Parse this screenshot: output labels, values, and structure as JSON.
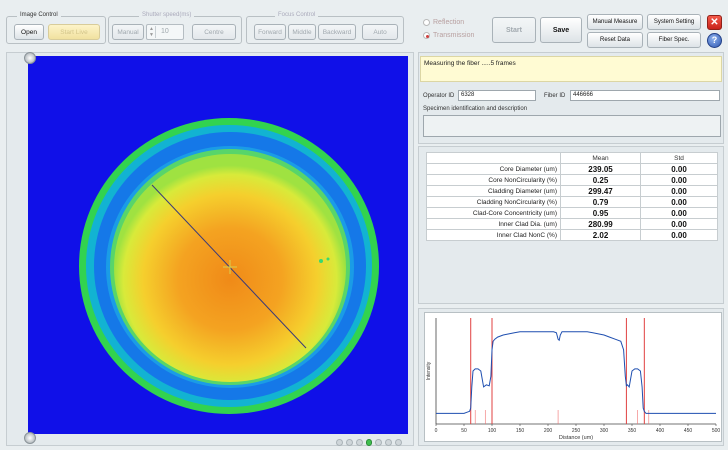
{
  "image_control": {
    "title": "Image Control",
    "open_label": "Open",
    "start_live_label": "Start Live"
  },
  "shutter_speed": {
    "title": "Shutter speed(ms)",
    "manual_label": "Manual",
    "value": "10",
    "centre_label": "Centre"
  },
  "focus_control": {
    "title": "Focus Control",
    "forward_label": "Forward",
    "middle_label": "Middle",
    "backward_label": "Backward",
    "auto_label": "Auto"
  },
  "illumination": {
    "reflection_label": "Reflection",
    "transmission_label": "Transmission",
    "selected": "Transmission"
  },
  "toolbar": {
    "start_label": "Start",
    "save_label": "Save",
    "manual_measure_label": "Manual Measure",
    "system_setting_label": "System Setting",
    "reset_data_label": "Reset Data",
    "fiber_spec_label": "Fiber Spec.",
    "close_icon": "close-icon",
    "help_icon": "help-icon"
  },
  "status": {
    "message": "Measuring the fiber .....5 frames"
  },
  "info": {
    "operator_id_label": "Operator ID",
    "operator_id": "6328",
    "fiber_id_label": "Fiber ID",
    "fiber_id": "446666",
    "specimen_label": "Specimen identification and description",
    "specimen_text": ""
  },
  "results": {
    "columns": [
      "",
      "Mean",
      "Std"
    ],
    "rows": [
      {
        "name": "Core Diameter (um)",
        "mean": "239.05",
        "std": "0.00"
      },
      {
        "name": "Core NonCircularity (%)",
        "mean": "0.25",
        "std": "0.00"
      },
      {
        "name": "Cladding Diameter (um)",
        "mean": "299.47",
        "std": "0.00"
      },
      {
        "name": "Cladding NonCircularity (%)",
        "mean": "0.79",
        "std": "0.00"
      },
      {
        "name": "Clad-Core Concentricity (um)",
        "mean": "0.95",
        "std": "0.00"
      },
      {
        "name": "Inner Clad Dia. (um)",
        "mean": "280.99",
        "std": "0.00"
      },
      {
        "name": "Inner Clad NonC (%)",
        "mean": "2.02",
        "std": "0.00"
      }
    ]
  },
  "colors": {
    "image_background": "#1010e8",
    "profile_line": "#1f4fb0",
    "edge_markers": "#e04040"
  },
  "chart_data": {
    "type": "line",
    "xlabel": "Distance (um)",
    "ylabel": "Intensity",
    "xlim": [
      0,
      500
    ],
    "xticks": [
      "0",
      "50",
      "100",
      "150",
      "200",
      "250",
      "300",
      "350",
      "400",
      "450",
      "500"
    ],
    "yticks": [],
    "series": [
      {
        "x": [
          0,
          10,
          20,
          30,
          40,
          50,
          60,
          62,
          64,
          66,
          70,
          75,
          80,
          85,
          90,
          95,
          98,
          100,
          102,
          105,
          110,
          120,
          130,
          140,
          150,
          160,
          170,
          180,
          190,
          200,
          210,
          215,
          218,
          220,
          222,
          225,
          230,
          240,
          250,
          260,
          270,
          280,
          290,
          300,
          310,
          320,
          330,
          335,
          338,
          340,
          342,
          345,
          350,
          355,
          360,
          365,
          368,
          370,
          372,
          375,
          380,
          390,
          400,
          420,
          440,
          460,
          480,
          500
        ],
        "y": [
          0.1,
          0.1,
          0.1,
          0.1,
          0.1,
          0.1,
          0.12,
          0.15,
          0.35,
          0.5,
          0.52,
          0.52,
          0.5,
          0.35,
          0.37,
          0.36,
          0.45,
          0.7,
          0.78,
          0.8,
          0.82,
          0.84,
          0.85,
          0.86,
          0.87,
          0.87,
          0.87,
          0.87,
          0.87,
          0.87,
          0.87,
          0.86,
          0.8,
          0.79,
          0.84,
          0.87,
          0.87,
          0.87,
          0.87,
          0.87,
          0.87,
          0.86,
          0.85,
          0.84,
          0.82,
          0.8,
          0.78,
          0.7,
          0.45,
          0.36,
          0.37,
          0.35,
          0.5,
          0.52,
          0.52,
          0.5,
          0.35,
          0.15,
          0.12,
          0.1,
          0.1,
          0.1,
          0.1,
          0.1,
          0.1,
          0.1,
          0.1,
          0.1
        ]
      }
    ],
    "edge_markers_x": [
      62,
      100,
      340,
      372
    ],
    "grid": false
  }
}
